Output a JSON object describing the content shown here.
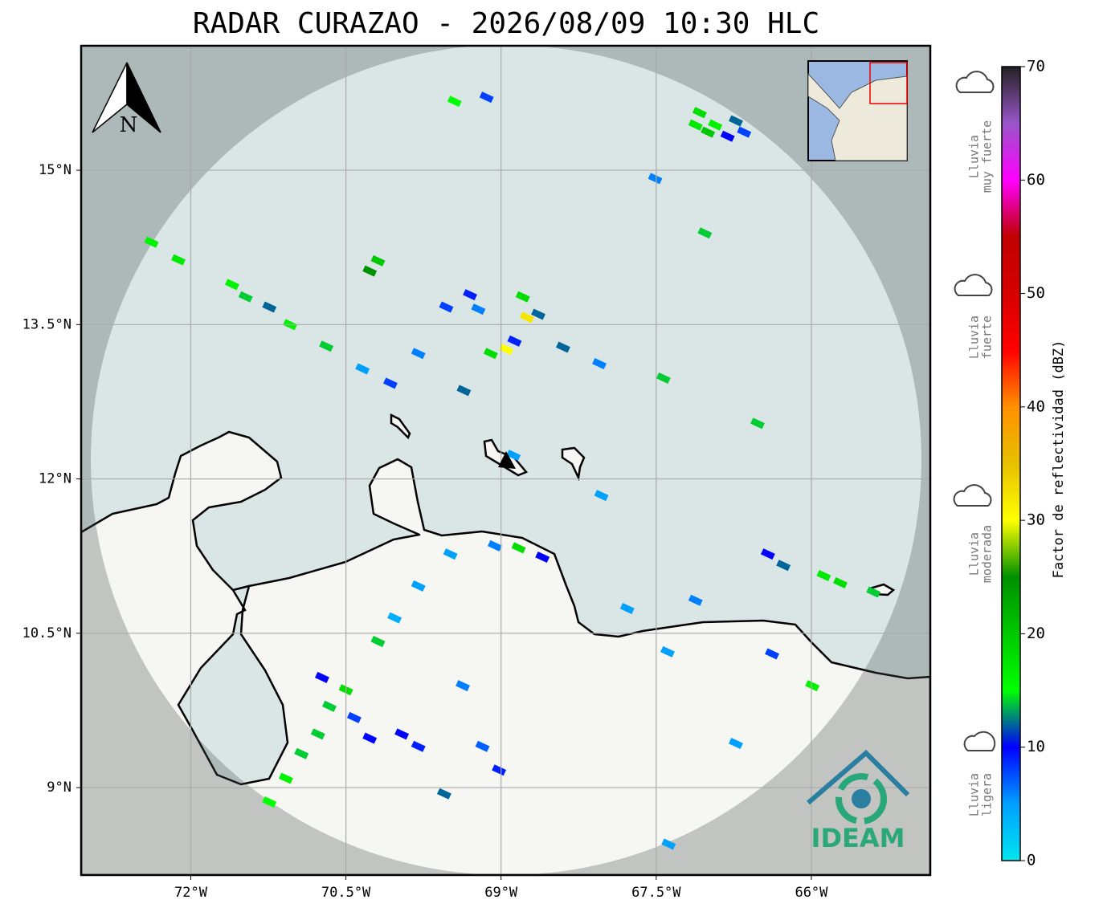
{
  "map": {
    "title": "RADAR CURAZAO - 2026/08/09 10:30 HLC",
    "xlim": [
      -73.06,
      -64.85
    ],
    "ylim": [
      8.15,
      16.21
    ],
    "xticks": [
      {
        "value": -72,
        "label": "72°W"
      },
      {
        "value": -70.5,
        "label": "70.5°W"
      },
      {
        "value": -69,
        "label": "69°W"
      },
      {
        "value": -67.5,
        "label": "67.5°W"
      },
      {
        "value": -66,
        "label": "66°W"
      }
    ],
    "yticks": [
      {
        "value": 15,
        "label": "15°N"
      },
      {
        "value": 13.5,
        "label": "13.5°N"
      },
      {
        "value": 12,
        "label": "12°N"
      },
      {
        "value": 10.5,
        "label": "10.5°N"
      },
      {
        "value": 9,
        "label": "9°N"
      }
    ],
    "grid": true,
    "north": "N",
    "logo": "IDEAM",
    "echoes": [
      {
        "lon": -67.08,
        "lat": 15.56,
        "dbz": 18
      },
      {
        "lon": -66.93,
        "lat": 15.44,
        "dbz": 16
      },
      {
        "lon": -66.73,
        "lat": 15.48,
        "dbz": 12
      },
      {
        "lon": -67.0,
        "lat": 15.37,
        "dbz": 20
      },
      {
        "lon": -66.81,
        "lat": 15.33,
        "dbz": 10
      },
      {
        "lon": -66.65,
        "lat": 15.37,
        "dbz": 8
      },
      {
        "lon": -67.12,
        "lat": 15.44,
        "dbz": 17
      },
      {
        "lon": -69.45,
        "lat": 15.67,
        "dbz": 15
      },
      {
        "lon": -69.14,
        "lat": 15.71,
        "dbz": 8
      },
      {
        "lon": -67.51,
        "lat": 14.92,
        "dbz": 6
      },
      {
        "lon": -67.03,
        "lat": 14.39,
        "dbz": 14
      },
      {
        "lon": -72.38,
        "lat": 14.3,
        "dbz": 16
      },
      {
        "lon": -72.12,
        "lat": 14.13,
        "dbz": 17
      },
      {
        "lon": -71.6,
        "lat": 13.89,
        "dbz": 16
      },
      {
        "lon": -71.47,
        "lat": 13.77,
        "dbz": 14
      },
      {
        "lon": -71.24,
        "lat": 13.67,
        "dbz": 12
      },
      {
        "lon": -71.04,
        "lat": 13.5,
        "dbz": 16
      },
      {
        "lon": -70.19,
        "lat": 14.12,
        "dbz": 20
      },
      {
        "lon": -70.27,
        "lat": 14.02,
        "dbz": 25
      },
      {
        "lon": -69.53,
        "lat": 13.67,
        "dbz": 8
      },
      {
        "lon": -69.22,
        "lat": 13.65,
        "dbz": 6
      },
      {
        "lon": -68.79,
        "lat": 13.77,
        "dbz": 18
      },
      {
        "lon": -68.75,
        "lat": 13.57,
        "dbz": 32
      },
      {
        "lon": -68.64,
        "lat": 13.6,
        "dbz": 12
      },
      {
        "lon": -68.95,
        "lat": 13.26,
        "dbz": 30
      },
      {
        "lon": -69.1,
        "lat": 13.22,
        "dbz": 18
      },
      {
        "lon": -68.87,
        "lat": 13.34,
        "dbz": 9
      },
      {
        "lon": -69.3,
        "lat": 13.79,
        "dbz": 9
      },
      {
        "lon": -69.8,
        "lat": 13.22,
        "dbz": 6
      },
      {
        "lon": -68.4,
        "lat": 13.28,
        "dbz": 12
      },
      {
        "lon": -68.05,
        "lat": 13.12,
        "dbz": 6
      },
      {
        "lon": -67.43,
        "lat": 12.98,
        "dbz": 14
      },
      {
        "lon": -70.69,
        "lat": 13.29,
        "dbz": 14
      },
      {
        "lon": -70.34,
        "lat": 13.07,
        "dbz": 5
      },
      {
        "lon": -70.07,
        "lat": 12.93,
        "dbz": 8
      },
      {
        "lon": -69.36,
        "lat": 12.86,
        "dbz": 12
      },
      {
        "lon": -66.52,
        "lat": 12.54,
        "dbz": 14
      },
      {
        "lon": -68.88,
        "lat": 12.23,
        "dbz": 5
      },
      {
        "lon": -68.03,
        "lat": 11.84,
        "dbz": 5
      },
      {
        "lon": -69.49,
        "lat": 11.27,
        "dbz": 5
      },
      {
        "lon": -69.8,
        "lat": 10.96,
        "dbz": 5
      },
      {
        "lon": -70.03,
        "lat": 10.65,
        "dbz": 4
      },
      {
        "lon": -70.19,
        "lat": 10.42,
        "dbz": 14
      },
      {
        "lon": -68.83,
        "lat": 11.33,
        "dbz": 18
      },
      {
        "lon": -68.6,
        "lat": 11.24,
        "dbz": 10
      },
      {
        "lon": -69.06,
        "lat": 11.35,
        "dbz": 6
      },
      {
        "lon": -66.42,
        "lat": 11.27,
        "dbz": 10
      },
      {
        "lon": -66.27,
        "lat": 11.16,
        "dbz": 12
      },
      {
        "lon": -65.88,
        "lat": 11.06,
        "dbz": 17
      },
      {
        "lon": -65.72,
        "lat": 10.99,
        "dbz": 18
      },
      {
        "lon": -65.4,
        "lat": 10.9,
        "dbz": 14
      },
      {
        "lon": -67.78,
        "lat": 10.74,
        "dbz": 5
      },
      {
        "lon": -67.12,
        "lat": 10.82,
        "dbz": 6
      },
      {
        "lon": -67.39,
        "lat": 10.32,
        "dbz": 5
      },
      {
        "lon": -66.38,
        "lat": 10.3,
        "dbz": 8
      },
      {
        "lon": -65.99,
        "lat": 9.99,
        "dbz": 16
      },
      {
        "lon": -70.73,
        "lat": 10.07,
        "dbz": 10
      },
      {
        "lon": -70.5,
        "lat": 9.95,
        "dbz": 18
      },
      {
        "lon": -70.66,
        "lat": 9.79,
        "dbz": 14
      },
      {
        "lon": -70.42,
        "lat": 9.68,
        "dbz": 8
      },
      {
        "lon": -70.27,
        "lat": 9.48,
        "dbz": 10
      },
      {
        "lon": -69.96,
        "lat": 9.52,
        "dbz": 10
      },
      {
        "lon": -69.8,
        "lat": 9.4,
        "dbz": 9
      },
      {
        "lon": -70.77,
        "lat": 9.52,
        "dbz": 14
      },
      {
        "lon": -70.93,
        "lat": 9.33,
        "dbz": 14
      },
      {
        "lon": -71.08,
        "lat": 9.09,
        "dbz": 16
      },
      {
        "lon": -71.24,
        "lat": 8.86,
        "dbz": 15
      },
      {
        "lon": -69.18,
        "lat": 9.4,
        "dbz": 7
      },
      {
        "lon": -69.02,
        "lat": 9.17,
        "dbz": 9
      },
      {
        "lon": -69.37,
        "lat": 9.99,
        "dbz": 6
      },
      {
        "lon": -69.55,
        "lat": 8.94,
        "dbz": 12
      },
      {
        "lon": -66.73,
        "lat": 9.43,
        "dbz": 5
      },
      {
        "lon": -67.38,
        "lat": 8.45,
        "dbz": 5
      }
    ]
  },
  "colorbar": {
    "label": "Factor de reflectividad (dBZ)",
    "lim": [
      0,
      70
    ],
    "ticks": [
      0,
      10,
      20,
      30,
      40,
      50,
      60,
      70
    ],
    "colors": [
      "#00e5f0",
      "#00a0ff",
      "#0000ff",
      "#00ff00",
      "#00c800",
      "#009000",
      "#ffff00",
      "#e7c000",
      "#ff9000",
      "#ff0000",
      "#d60000",
      "#c00000",
      "#ff00ff",
      "#9955c9",
      "#222222"
    ]
  },
  "legend": [
    {
      "lines": [
        "Lluvia",
        "muy fuerte"
      ]
    },
    {
      "lines": [
        "Lluvia",
        "fuerte"
      ]
    },
    {
      "lines": [
        "Lluvia",
        "moderada"
      ]
    },
    {
      "lines": [
        "Lluvia",
        "ligera"
      ]
    }
  ]
}
